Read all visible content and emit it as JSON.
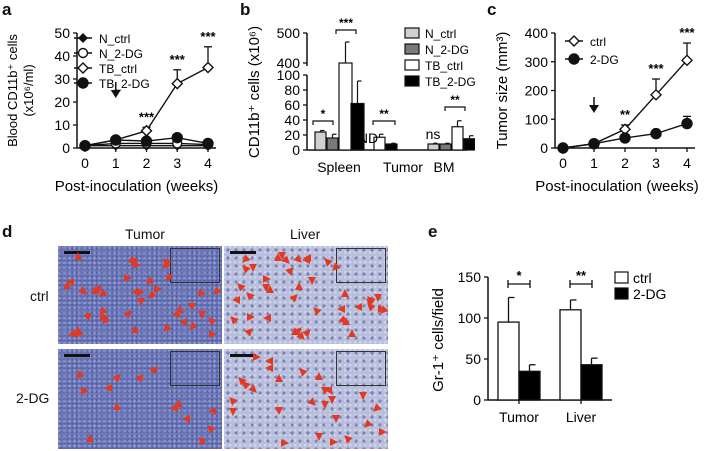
{
  "panels": {
    "a": {
      "label": "a"
    },
    "b": {
      "label": "b"
    },
    "c": {
      "label": "c"
    },
    "d": {
      "label": "d",
      "col_titles": [
        "Tumor",
        "Liver"
      ],
      "row_labels": [
        "ctrl",
        "2-DG"
      ]
    },
    "e": {
      "label": "e"
    }
  },
  "chart_data": [
    {
      "panel": "a",
      "type": "line",
      "ylabel_line1": "Blood CD11b⁺ cells",
      "ylabel_line2": "(x10⁶/ml)",
      "xlabel": "Post-inoculation (weeks)",
      "x": [
        0,
        1,
        2,
        3,
        4
      ],
      "yticks": [
        0,
        10,
        20,
        30,
        40,
        50
      ],
      "ylim": [
        0,
        50
      ],
      "treatment_arrow_x": 1,
      "series": [
        {
          "name": "N_ctrl",
          "marker": "filled-diamond",
          "values": [
            1,
            1,
            1,
            1,
            1
          ]
        },
        {
          "name": "N_2-DG",
          "marker": "open-circle",
          "values": [
            1,
            2,
            2,
            2,
            1.5
          ]
        },
        {
          "name": "TB_ctrl",
          "marker": "open-diamond",
          "values": [
            1,
            3.5,
            7.5,
            28,
            35
          ],
          "errors": [
            0,
            0.5,
            1.5,
            6,
            9
          ]
        },
        {
          "name": "TB_2-DG",
          "marker": "filled-circle",
          "values": [
            1,
            3.5,
            3,
            4.5,
            2
          ]
        }
      ],
      "annotations": [
        {
          "x": 2,
          "text": "***"
        },
        {
          "x": 3,
          "text": "***"
        },
        {
          "x": 4,
          "text": "***"
        }
      ],
      "legend_position": "upper-left"
    },
    {
      "panel": "b",
      "type": "bar",
      "ylabel": "CD11b⁺ cells (x10⁶)",
      "categories": [
        "Spleen",
        "Tumor",
        "BM"
      ],
      "yticks": [
        0,
        20,
        40,
        60,
        80,
        100,
        400,
        500
      ],
      "axis_break": [
        100,
        400
      ],
      "series": [
        {
          "name": "N_ctrl",
          "color": "#d0d0d0",
          "values": [
            24,
            null,
            8
          ],
          "errors": [
            2,
            null,
            1
          ]
        },
        {
          "name": "N_2-DG",
          "color": "#7a7a7a",
          "values": [
            16,
            null,
            8
          ],
          "errors": [
            5,
            null,
            1
          ]
        },
        {
          "name": "TB_ctrl",
          "color": "#ffffff",
          "values": [
            400,
            17,
            31
          ],
          "errors": [
            70,
            4,
            8
          ]
        },
        {
          "name": "TB_2-DG",
          "color": "#000000",
          "values": [
            62,
            8,
            15
          ],
          "errors": [
            30,
            1,
            4
          ]
        }
      ],
      "annotations": [
        {
          "category": "Spleen",
          "pair": "N",
          "text": "*"
        },
        {
          "category": "Spleen",
          "pair": "TB",
          "text": "***"
        },
        {
          "category": "Tumor",
          "pair": "N",
          "text": "ND"
        },
        {
          "category": "Tumor",
          "pair": "TB",
          "text": "**"
        },
        {
          "category": "BM",
          "pair": "N",
          "text": "ns"
        },
        {
          "category": "BM",
          "pair": "TB",
          "text": "**"
        }
      ],
      "legend_position": "upper-right"
    },
    {
      "panel": "c",
      "type": "line",
      "ylabel": "Tumor size (mm³)",
      "xlabel": "Post-inoculation (weeks)",
      "x": [
        0,
        1,
        2,
        3,
        4
      ],
      "yticks": [
        0,
        100,
        200,
        300,
        400
      ],
      "ylim": [
        0,
        400
      ],
      "treatment_arrow_x": 1,
      "series": [
        {
          "name": "ctrl",
          "marker": "open-diamond",
          "values": [
            0,
            15,
            65,
            185,
            305
          ],
          "errors": [
            0,
            3,
            15,
            55,
            60
          ]
        },
        {
          "name": "2-DG",
          "marker": "filled-circle",
          "values": [
            0,
            15,
            35,
            50,
            85
          ],
          "errors": [
            0,
            3,
            5,
            8,
            25
          ]
        }
      ],
      "annotations": [
        {
          "x": 2,
          "text": "**"
        },
        {
          "x": 3,
          "text": "***"
        },
        {
          "x": 4,
          "text": "***"
        }
      ],
      "legend_position": "upper-left"
    },
    {
      "panel": "e",
      "type": "bar",
      "ylabel": "Gr-1⁺ cells/field",
      "categories": [
        "Tumor",
        "Liver"
      ],
      "yticks": [
        0,
        50,
        100,
        150
      ],
      "ylim": [
        0,
        150
      ],
      "series": [
        {
          "name": "ctrl",
          "color": "#ffffff",
          "values": [
            95,
            110
          ],
          "errors": [
            30,
            12
          ]
        },
        {
          "name": "2-DG",
          "color": "#000000",
          "values": [
            35,
            43
          ],
          "errors": [
            8,
            8
          ]
        }
      ],
      "annotations": [
        {
          "category": "Tumor",
          "text": "*"
        },
        {
          "category": "Liver",
          "text": "**"
        }
      ],
      "legend_position": "upper-right"
    }
  ]
}
